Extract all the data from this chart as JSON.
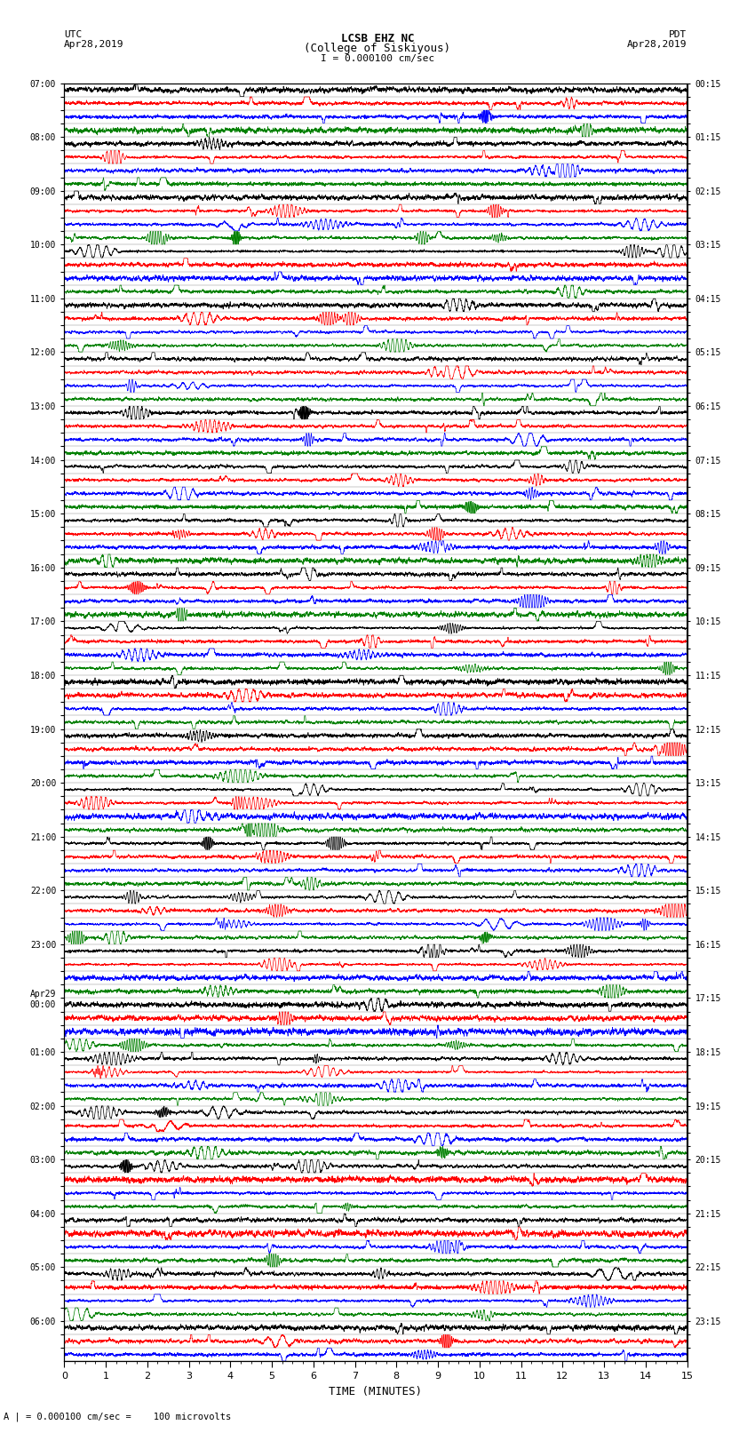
{
  "title_line1": "LCSB EHZ NC",
  "title_line2": "(College of Siskiyous)",
  "scale_label": "I = 0.000100 cm/sec",
  "utc_label_line1": "UTC",
  "utc_label_line2": "Apr28,2019",
  "pdt_label_line1": "PDT",
  "pdt_label_line2": "Apr28,2019",
  "bottom_label": "A | = 0.000100 cm/sec =    100 microvolts",
  "xlabel": "TIME (MINUTES)",
  "left_times": [
    "07:00",
    "",
    "",
    "",
    "08:00",
    "",
    "",
    "",
    "09:00",
    "",
    "",
    "",
    "10:00",
    "",
    "",
    "",
    "11:00",
    "",
    "",
    "",
    "12:00",
    "",
    "",
    "",
    "13:00",
    "",
    "",
    "",
    "14:00",
    "",
    "",
    "",
    "15:00",
    "",
    "",
    "",
    "16:00",
    "",
    "",
    "",
    "17:00",
    "",
    "",
    "",
    "18:00",
    "",
    "",
    "",
    "19:00",
    "",
    "",
    "",
    "20:00",
    "",
    "",
    "",
    "21:00",
    "",
    "",
    "",
    "22:00",
    "",
    "",
    "",
    "23:00",
    "",
    "",
    "",
    "Apr29\n00:00",
    "",
    "",
    "",
    "01:00",
    "",
    "",
    "",
    "02:00",
    "",
    "",
    "",
    "03:00",
    "",
    "",
    "",
    "04:00",
    "",
    "",
    "",
    "05:00",
    "",
    "",
    "",
    "06:00",
    "",
    ""
  ],
  "right_times": [
    "00:15",
    "",
    "",
    "",
    "01:15",
    "",
    "",
    "",
    "02:15",
    "",
    "",
    "",
    "03:15",
    "",
    "",
    "",
    "04:15",
    "",
    "",
    "",
    "05:15",
    "",
    "",
    "",
    "06:15",
    "",
    "",
    "",
    "07:15",
    "",
    "",
    "",
    "08:15",
    "",
    "",
    "",
    "09:15",
    "",
    "",
    "",
    "10:15",
    "",
    "",
    "",
    "11:15",
    "",
    "",
    "",
    "12:15",
    "",
    "",
    "",
    "13:15",
    "",
    "",
    "",
    "14:15",
    "",
    "",
    "",
    "15:15",
    "",
    "",
    "",
    "16:15",
    "",
    "",
    "",
    "17:15",
    "",
    "",
    "",
    "18:15",
    "",
    "",
    "",
    "19:15",
    "",
    "",
    "",
    "20:15",
    "",
    "",
    "",
    "21:15",
    "",
    "",
    "",
    "22:15",
    "",
    "",
    "",
    "23:15",
    "",
    ""
  ],
  "num_rows": 95,
  "colors_cycle": [
    "black",
    "red",
    "blue",
    "green"
  ],
  "figsize": [
    8.5,
    16.13
  ],
  "dpi": 100,
  "bg_color": "white",
  "trace_linewidth": 0.5,
  "xmin": 0,
  "xmax": 15,
  "xtick_major": 1,
  "xtick_minor": 0.25
}
